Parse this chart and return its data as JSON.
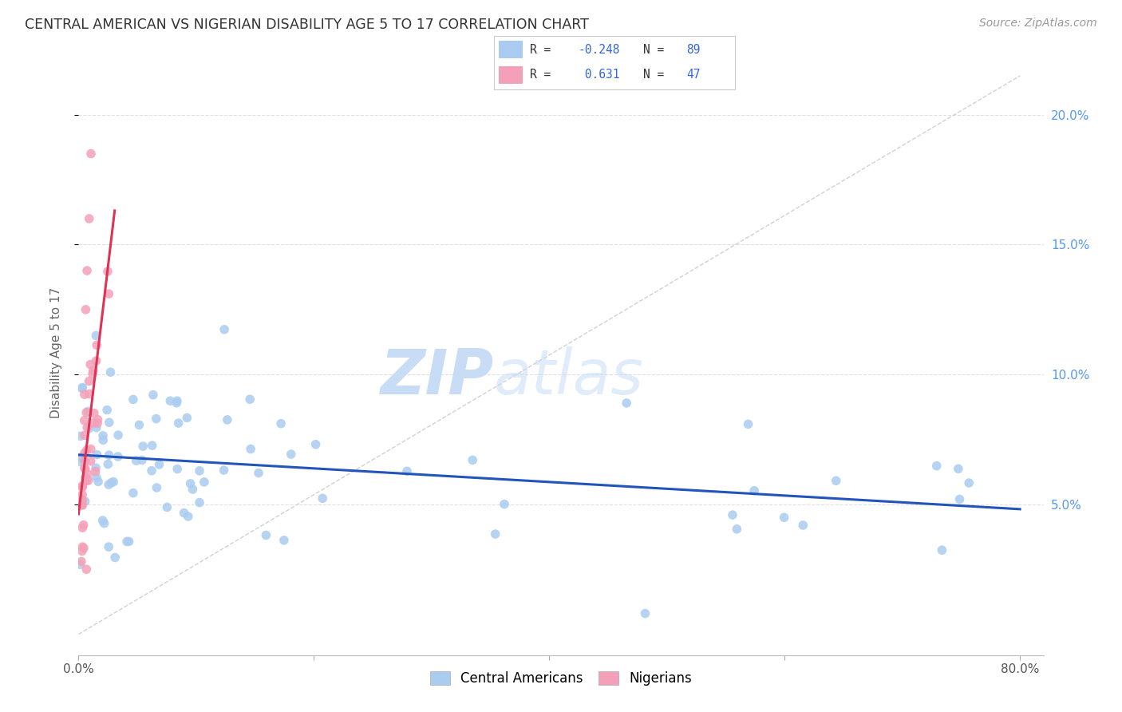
{
  "title": "CENTRAL AMERICAN VS NIGERIAN DISABILITY AGE 5 TO 17 CORRELATION CHART",
  "source": "Source: ZipAtlas.com",
  "ylabel": "Disability Age 5 to 17",
  "xlim": [
    0.0,
    0.82
  ],
  "ylim": [
    -0.008,
    0.225
  ],
  "xtick_positions": [
    0.0,
    0.2,
    0.4,
    0.6,
    0.8
  ],
  "xtick_labels": [
    "0.0%",
    "",
    "",
    "",
    "80.0%"
  ],
  "ytick_positions": [
    0.05,
    0.1,
    0.15,
    0.2
  ],
  "ytick_labels": [
    "5.0%",
    "10.0%",
    "15.0%",
    "20.0%"
  ],
  "blue_R": -0.248,
  "blue_N": 89,
  "pink_R": 0.631,
  "pink_N": 47,
  "blue_color": "#aaccf0",
  "pink_color": "#f4a0b8",
  "blue_line_color": "#2255bb",
  "pink_line_color": "#dd3355",
  "diag_line_color": "#cccccc",
  "grid_color": "#e0e0e0",
  "title_color": "#333333",
  "axis_label_color": "#666666",
  "right_tick_color": "#5599ee",
  "legend_R_color": "#3366dd",
  "legend_N_color": "#3366dd",
  "watermark_zip_color": "#c8ddf5",
  "watermark_atlas_color": "#c8ddf5",
  "bg_color": "#ffffff"
}
